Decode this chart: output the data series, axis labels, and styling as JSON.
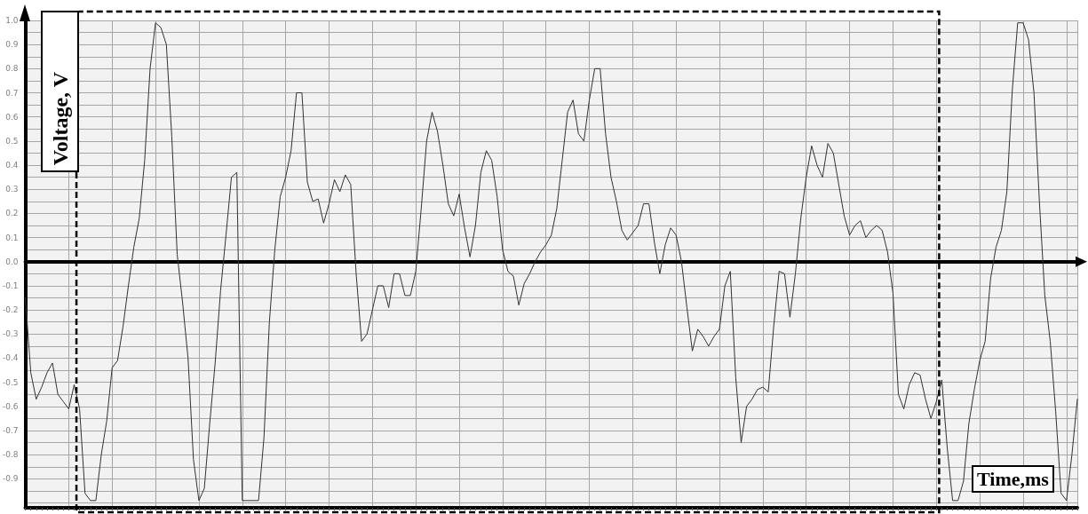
{
  "chart_data": {
    "type": "line",
    "ylabel": "Voltage, V",
    "xlabel": "Time,ms",
    "categories": [
      null,
      null,
      null,
      null,
      null,
      null,
      null,
      null,
      null,
      null,
      null,
      null,
      null,
      null,
      null,
      null,
      null,
      null,
      null,
      null,
      null,
      null,
      null,
      null,
      null,
      null,
      null,
      null,
      null,
      null,
      null,
      null,
      null,
      null,
      null,
      null,
      null,
      null,
      null,
      null,
      null,
      null,
      null,
      null,
      null,
      null,
      null,
      null,
      null,
      null,
      null,
      null,
      null,
      null,
      null,
      null,
      null,
      null,
      null,
      null,
      null,
      null,
      null,
      null,
      null,
      null,
      null,
      null,
      null,
      null,
      null,
      null,
      null,
      null,
      null,
      null,
      null,
      null,
      null,
      null,
      null,
      null,
      null,
      null,
      null,
      null,
      null,
      null,
      null,
      null,
      null,
      null,
      null,
      null,
      null,
      null,
      null,
      null,
      null,
      null,
      null,
      null,
      null,
      null,
      null,
      null,
      null,
      null,
      null,
      null,
      null,
      null,
      null,
      null,
      null,
      null,
      null,
      null,
      null,
      null,
      null,
      null,
      null,
      null,
      null,
      null,
      null,
      null,
      null,
      null,
      null,
      null,
      null,
      null,
      null,
      null,
      null,
      null,
      null,
      null,
      null,
      null,
      null,
      null,
      null,
      null,
      null,
      null,
      null,
      null,
      null,
      null,
      null,
      null,
      null,
      null,
      null,
      null,
      null,
      null,
      null,
      null,
      null,
      null,
      null,
      null,
      null,
      null,
      null,
      null,
      null,
      null,
      null,
      null,
      null,
      null,
      null,
      null,
      null,
      null,
      null,
      null,
      null,
      null,
      null,
      null,
      null,
      null,
      null,
      null,
      null,
      null,
      null,
      null,
      null
    ],
    "values": [
      -0.15,
      -0.46,
      -0.57,
      -0.52,
      -0.46,
      -0.42,
      -0.55,
      -0.58,
      -0.61,
      -0.51,
      -0.61,
      -0.96,
      -0.99,
      -0.99,
      -0.8,
      -0.66,
      -0.44,
      -0.41,
      -0.27,
      -0.1,
      0.06,
      0.18,
      0.42,
      0.8,
      0.99,
      0.97,
      0.9,
      0.52,
      0.03,
      -0.17,
      -0.4,
      -0.82,
      -0.99,
      -0.94,
      -0.67,
      -0.42,
      -0.12,
      0.11,
      0.35,
      0.37,
      -0.99,
      -0.99,
      -0.99,
      -0.99,
      -0.73,
      -0.25,
      0.05,
      0.27,
      0.35,
      0.46,
      0.7,
      0.7,
      0.33,
      0.25,
      0.26,
      0.16,
      0.24,
      0.34,
      0.29,
      0.36,
      0.32,
      -0.05,
      -0.33,
      -0.3,
      -0.2,
      -0.1,
      -0.1,
      -0.19,
      -0.05,
      -0.05,
      -0.14,
      -0.14,
      -0.04,
      0.22,
      0.5,
      0.62,
      0.54,
      0.4,
      0.24,
      0.19,
      0.28,
      0.14,
      0.02,
      0.15,
      0.37,
      0.46,
      0.42,
      0.27,
      0.05,
      -0.04,
      -0.06,
      -0.18,
      -0.09,
      -0.05,
      0,
      0.04,
      0.07,
      0.11,
      0.22,
      0.42,
      0.62,
      0.67,
      0.53,
      0.5,
      0.67,
      0.8,
      0.8,
      0.53,
      0.35,
      0.25,
      0.13,
      0.09,
      0.12,
      0.15,
      0.24,
      0.24,
      0.08,
      -0.05,
      0.07,
      0.14,
      0.11,
      0,
      -0.19,
      -0.37,
      -0.28,
      -0.31,
      -0.35,
      -0.31,
      -0.28,
      -0.1,
      -0.04,
      -0.48,
      -0.75,
      -0.6,
      -0.57,
      -0.53,
      -0.52,
      -0.54,
      -0.27,
      -0.04,
      -0.05,
      -0.23,
      -0.05,
      0.18,
      0.35,
      0.48,
      0.4,
      0.35,
      0.49,
      0.45,
      0.32,
      0.19,
      0.11,
      0.15,
      0.17,
      0.1,
      0.13,
      0.15,
      0.13,
      0.04,
      -0.13,
      -0.55,
      -0.61,
      -0.51,
      -0.46,
      -0.47,
      -0.57,
      -0.65,
      -0.58,
      -0.49,
      -0.77,
      -0.99,
      -0.99,
      -0.91,
      -0.67,
      -0.53,
      -0.41,
      -0.33,
      -0.07,
      0.06,
      0.13,
      0.29,
      0.71,
      0.99,
      0.99,
      0.92,
      0.7,
      0.25,
      -0.14,
      -0.33,
      -0.62,
      -0.96,
      -0.99,
      -0.8,
      -0.57
    ],
    "color": "#333333",
    "ylim": [
      -1.02,
      1
    ],
    "yticks": [
      {
        "value": 1,
        "label": "1.0"
      },
      {
        "value": 0.95,
        "label": null
      },
      0.9,
      {
        "value": 0.85,
        "label": null
      },
      0.8,
      {
        "value": 0.75,
        "label": null
      },
      0.7,
      {
        "value": 0.65,
        "label": null
      },
      0.6,
      {
        "value": 0.55,
        "label": null
      },
      0.5,
      {
        "value": 0.45,
        "label": null
      },
      0.4,
      {
        "value": 0.35,
        "label": null
      },
      0.3,
      {
        "value": 0.25,
        "label": null
      },
      0.2,
      {
        "value": 0.15,
        "label": null
      },
      0.1,
      {
        "value": 0.05,
        "label": null
      },
      {
        "value": 0,
        "label": "0.0"
      },
      {
        "value": -0.05,
        "label": null
      },
      -0.1,
      {
        "value": -0.15,
        "label": null
      },
      -0.2,
      {
        "value": -0.25,
        "label": null
      },
      -0.3,
      {
        "value": -0.35,
        "label": null
      },
      -0.4,
      {
        "value": -0.45,
        "label": null
      },
      -0.5,
      {
        "value": -0.55,
        "label": null
      },
      -0.6,
      {
        "value": -0.65,
        "label": null
      },
      -0.7,
      {
        "value": -0.75,
        "label": null
      },
      -0.8,
      {
        "value": -0.85,
        "label": null
      },
      -0.9,
      {
        "value": -0.95,
        "label": null
      },
      {
        "value": -1,
        "label": null
      }
    ],
    "grid": true,
    "tick_labels": "y"
  }
}
